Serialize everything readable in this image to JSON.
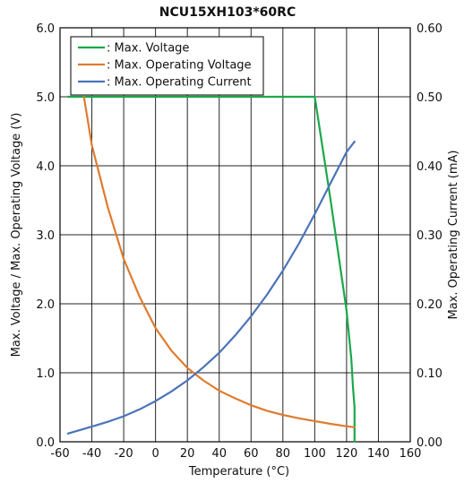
{
  "chart_data": {
    "type": "line",
    "title": "NCU15XH103*60RC",
    "xlabel": "Temperature (°C)",
    "ylabel_left": "Max. Voltage / Max. Operating Voltage (V)",
    "ylabel_right": "Max. Operating Current (mA)",
    "xlim": [
      -60,
      160
    ],
    "ylim_left": [
      0,
      6
    ],
    "ylim_right": [
      0,
      0.6
    ],
    "x_ticks": [
      "-60",
      "-40",
      "-20",
      "0",
      "20",
      "40",
      "60",
      "80",
      "100",
      "120",
      "140",
      "160"
    ],
    "y_left_ticks": [
      "0.0",
      "1.0",
      "2.0",
      "3.0",
      "4.0",
      "5.0",
      "6.0"
    ],
    "y_right_ticks": [
      "0.00",
      "0.10",
      "0.20",
      "0.30",
      "0.40",
      "0.50",
      "0.60"
    ],
    "grid": true,
    "legend_position": "top-left",
    "series": [
      {
        "name": ": Max. Voltage",
        "color": "#1aa84a",
        "axis": "left",
        "x": [
          -55,
          100,
          110,
          120,
          123,
          124,
          125,
          125
        ],
        "y": [
          5.0,
          5.0,
          3.5,
          1.9,
          1.2,
          0.8,
          0.5,
          0.0
        ]
      },
      {
        "name": ": Max. Operating Voltage",
        "color": "#e07b2e",
        "axis": "left",
        "x": [
          -45,
          -40,
          -30,
          -20,
          -10,
          0,
          10,
          20,
          30,
          40,
          50,
          60,
          70,
          80,
          90,
          100,
          110,
          120,
          125
        ],
        "y": [
          5.0,
          4.3,
          3.4,
          2.65,
          2.1,
          1.65,
          1.32,
          1.07,
          0.89,
          0.74,
          0.63,
          0.53,
          0.45,
          0.39,
          0.34,
          0.3,
          0.26,
          0.225,
          0.21
        ]
      },
      {
        "name": ": Max. Operating Current",
        "color": "#4a74b9",
        "axis": "right",
        "x": [
          -55,
          -40,
          -30,
          -20,
          -10,
          0,
          10,
          20,
          30,
          40,
          50,
          60,
          70,
          80,
          90,
          100,
          110,
          120,
          125
        ],
        "y": [
          0.012,
          0.022,
          0.029,
          0.037,
          0.047,
          0.059,
          0.073,
          0.089,
          0.108,
          0.129,
          0.154,
          0.182,
          0.213,
          0.248,
          0.287,
          0.33,
          0.375,
          0.42,
          0.435
        ]
      }
    ]
  }
}
